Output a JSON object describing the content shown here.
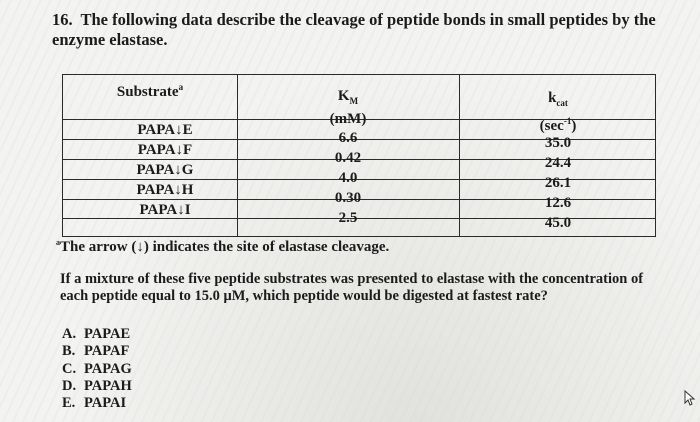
{
  "question": {
    "number": "16.",
    "title": "The following data describe the cleavage of peptide bonds in small peptides by the enzyme elastase."
  },
  "table": {
    "headers": {
      "substrate": "Substrate",
      "substrate_mark": "a",
      "km_main": "K",
      "km_sub": "M",
      "km_unit": "(mM)",
      "kcat_main": "k",
      "kcat_sub": "cat",
      "kcat_unit_pre": "(sec",
      "kcat_unit_exp": "-1",
      "kcat_unit_post": ")"
    },
    "substrates": [
      "PAPA↓E",
      "PAPA↓F",
      "PAPA↓G",
      "PAPA↓H",
      "PAPA↓I"
    ],
    "km": [
      "6.6",
      "0.42",
      "4.0",
      "0.30",
      "2.5"
    ],
    "kcat": [
      "35.0",
      "24.4",
      "26.1",
      "12.6",
      "45.0"
    ]
  },
  "footnote": {
    "mark": "a",
    "text": "The arrow (↓) indicates the site of elastase cleavage."
  },
  "prompt": "If a mixture of these five peptide substrates was presented to elastase with the concentration of each peptide equal to 15.0 μM, which peptide would be digested at fastest rate?",
  "options": [
    {
      "letter": "A.",
      "text": "PAPAE"
    },
    {
      "letter": "B.",
      "text": "PAPAF"
    },
    {
      "letter": "C.",
      "text": "PAPAG"
    },
    {
      "letter": "D.",
      "text": "PAPAH"
    },
    {
      "letter": "E.",
      "text": "PAPAI"
    }
  ],
  "icons": {
    "cursor": "cursor-icon"
  }
}
